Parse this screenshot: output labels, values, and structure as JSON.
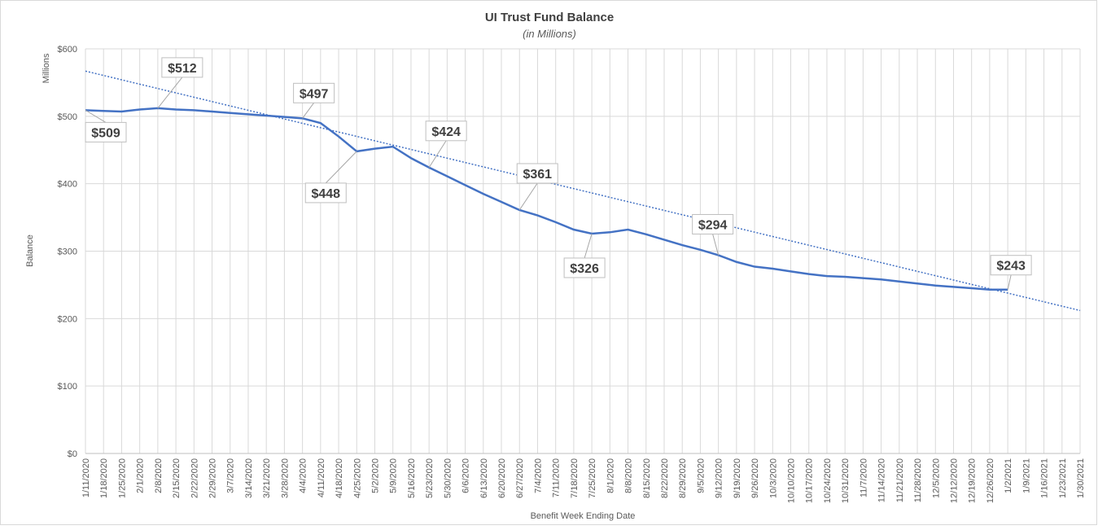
{
  "chart_data": {
    "type": "line",
    "title": "UI Trust Fund Balance",
    "subtitle": "(in Millions)",
    "y_axis_unit": "Millions",
    "y_label": "Balance",
    "x_label": "Benefit Week Ending Date",
    "categories": [
      "1/11/2020",
      "1/18/2020",
      "1/25/2020",
      "2/1/2020",
      "2/8/2020",
      "2/15/2020",
      "2/22/2020",
      "2/29/2020",
      "3/7/2020",
      "3/14/2020",
      "3/21/2020",
      "3/28/2020",
      "4/4/2020",
      "4/11/2020",
      "4/18/2020",
      "4/25/2020",
      "5/2/2020",
      "5/9/2020",
      "5/16/2020",
      "5/23/2020",
      "5/30/2020",
      "6/6/2020",
      "6/13/2020",
      "6/20/2020",
      "6/27/2020",
      "7/4/2020",
      "7/11/2020",
      "7/18/2020",
      "7/25/2020",
      "8/1/2020",
      "8/8/2020",
      "8/15/2020",
      "8/22/2020",
      "8/29/2020",
      "9/5/2020",
      "9/12/2020",
      "9/19/2020",
      "9/26/2020",
      "10/3/2020",
      "10/10/2020",
      "10/17/2020",
      "10/24/2020",
      "10/31/2020",
      "11/7/2020",
      "11/14/2020",
      "11/21/2020",
      "11/28/2020",
      "12/5/2020",
      "12/12/2020",
      "12/19/2020",
      "12/26/2020",
      "1/2/2021",
      "1/9/2021",
      "1/16/2021",
      "1/23/2021",
      "1/30/2021"
    ],
    "series": [
      {
        "color": "#4472c4",
        "values": [
          509,
          508,
          507,
          510,
          512,
          510,
          509,
          507,
          505,
          503,
          501,
          499,
          497,
          490,
          470,
          448,
          452,
          455,
          438,
          424,
          411,
          398,
          385,
          373,
          361,
          353,
          343,
          332,
          326,
          328,
          332,
          325,
          317,
          309,
          302,
          294,
          284,
          277,
          274,
          270,
          266,
          263,
          262,
          260,
          258,
          255,
          252,
          249,
          247,
          245,
          243,
          243,
          null,
          null,
          null,
          null
        ],
        "value_labels": [
          "$509",
          null,
          null,
          null,
          "$512",
          null,
          null,
          null,
          null,
          null,
          null,
          null,
          "$497",
          null,
          null,
          "$448",
          null,
          null,
          null,
          "$424",
          null,
          null,
          null,
          null,
          "$361",
          null,
          null,
          null,
          "$326",
          null,
          null,
          null,
          null,
          null,
          null,
          "$294",
          null,
          null,
          null,
          null,
          null,
          null,
          null,
          null,
          null,
          null,
          null,
          null,
          null,
          null,
          null,
          "$243",
          null,
          null,
          null,
          null
        ]
      }
    ],
    "trendline": {
      "values": [
        567,
        212
      ],
      "color": "#4472c4",
      "style": "dotted"
    },
    "ylim": [
      0,
      600
    ],
    "yticks": [
      {
        "value": 0,
        "label": "$0"
      },
      {
        "value": 100,
        "label": "$100"
      },
      {
        "value": 200,
        "label": "$200"
      },
      {
        "value": 300,
        "label": "$300"
      },
      {
        "value": 400,
        "label": "$400"
      },
      {
        "value": 500,
        "label": "$500"
      },
      {
        "value": 600,
        "label": "$600"
      }
    ],
    "grid": true
  }
}
